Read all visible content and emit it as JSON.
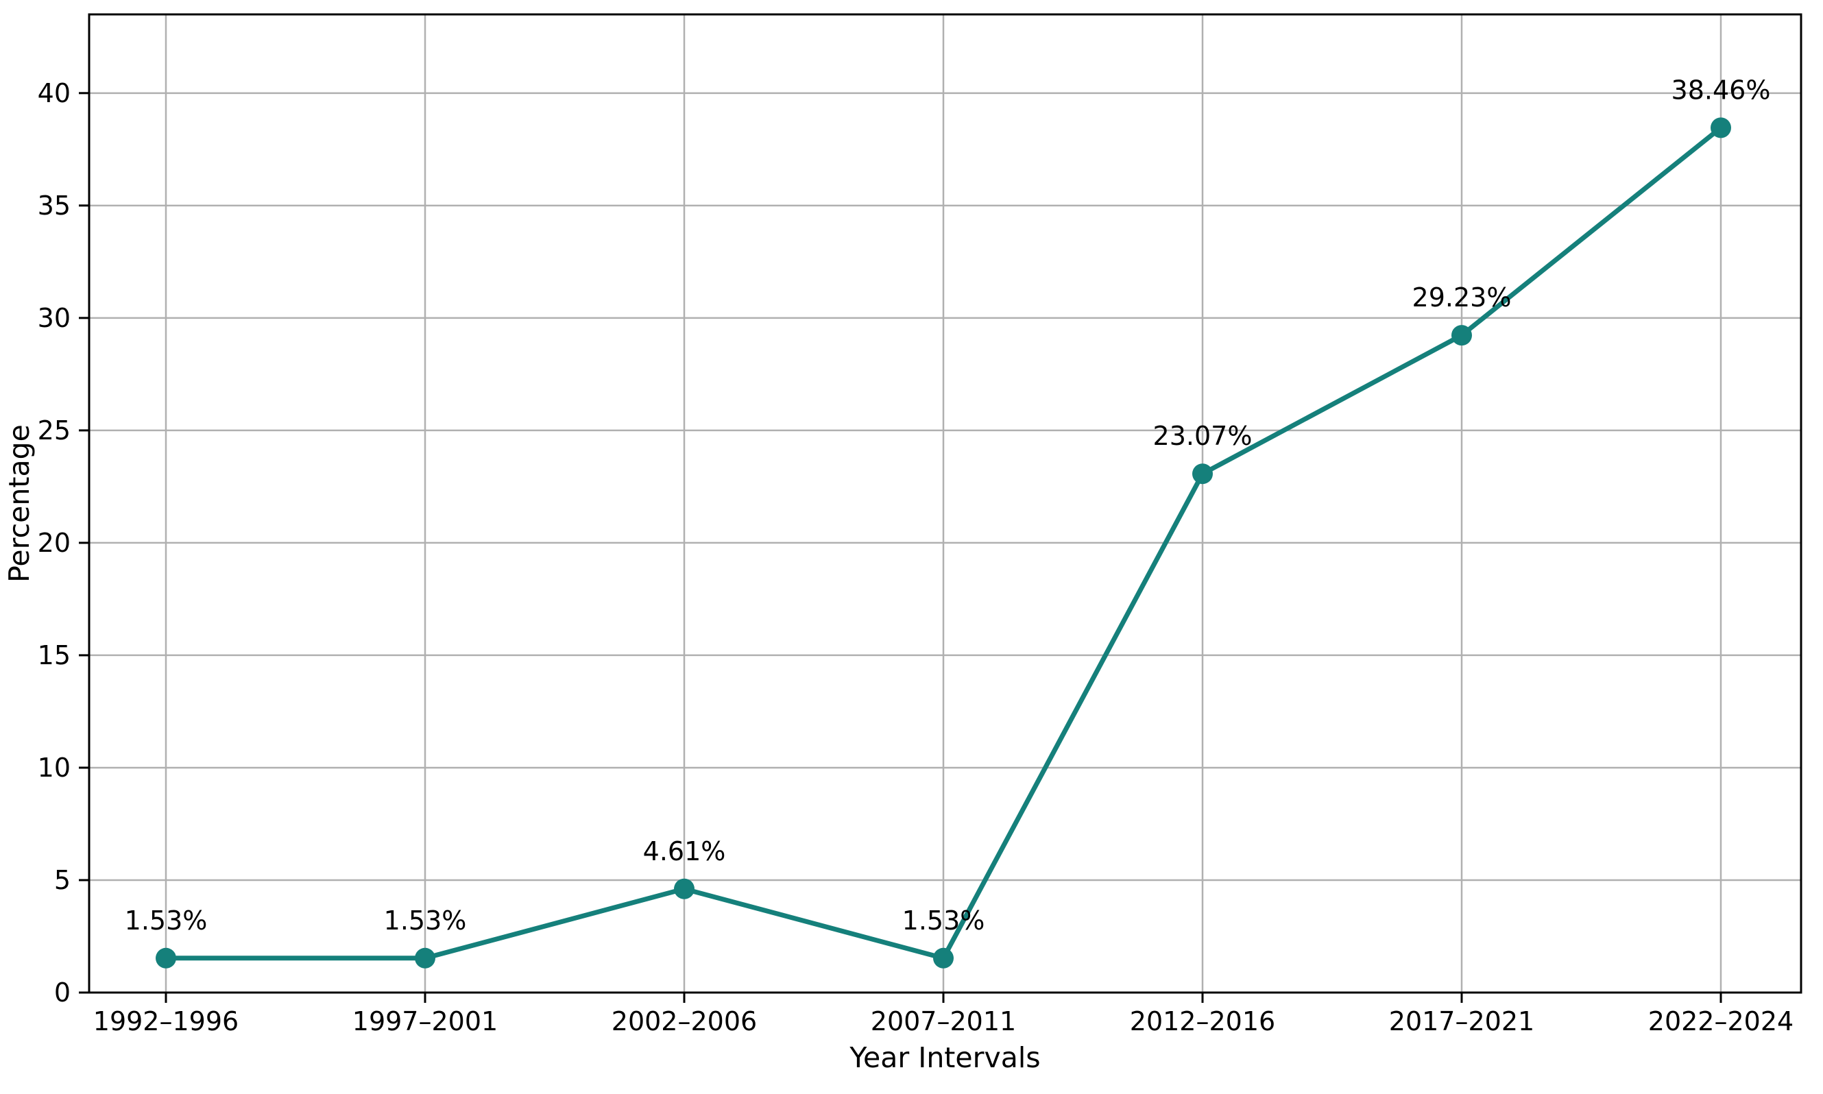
{
  "chart_data": {
    "type": "line",
    "title": "",
    "xlabel": "Year Intervals",
    "ylabel": "Percentage",
    "categories": [
      "1992–1996",
      "1997–2001",
      "2002–2006",
      "2007–2011",
      "2012–2016",
      "2017–2021",
      "2022–2024"
    ],
    "series": [
      {
        "name": "Percentage",
        "values": [
          1.53,
          1.53,
          4.61,
          1.53,
          23.07,
          29.23,
          38.46
        ],
        "point_labels": [
          "1.53%",
          "1.53%",
          "4.61%",
          "1.53%",
          "23.07%",
          "29.23%",
          "38.46%"
        ]
      }
    ],
    "ylim": [
      0,
      43.5
    ],
    "yticks": [
      0,
      5,
      10,
      15,
      20,
      25,
      30,
      35,
      40
    ],
    "grid": true,
    "legend_position": "none",
    "colors": {
      "line": "#15807b",
      "marker": "#15807b",
      "grid": "#b0b0b0",
      "spine": "#000000",
      "tick": "#000000",
      "text": "#000000",
      "background": "#ffffff"
    }
  }
}
